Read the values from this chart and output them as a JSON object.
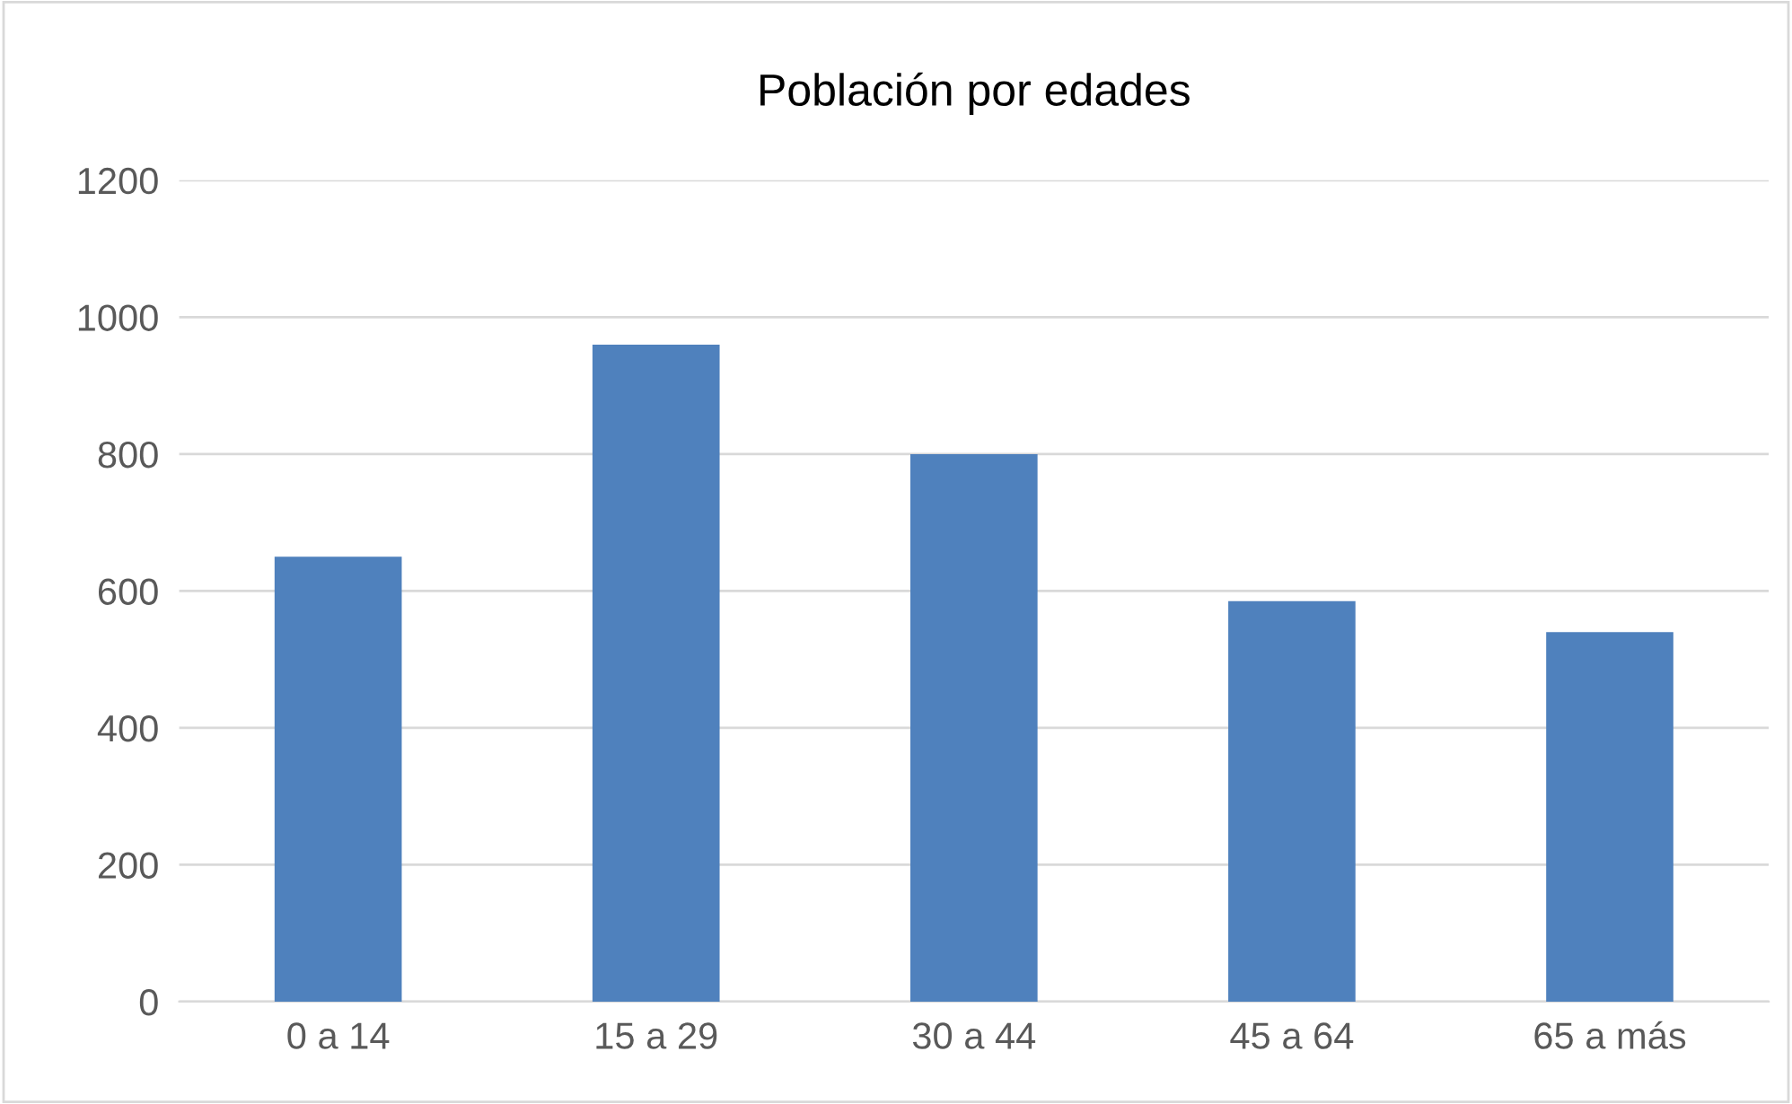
{
  "chart_data": {
    "type": "bar",
    "title": "Población por edades",
    "categories": [
      "0 a 14",
      "15 a 29",
      "30 a 44",
      "45 a 64",
      "65 a más"
    ],
    "values": [
      650,
      960,
      800,
      585,
      540
    ],
    "color": "#4f81bd",
    "ylim": [
      0,
      1200
    ],
    "yticks": [
      0,
      200,
      400,
      600,
      800,
      1000,
      1200
    ],
    "grid": "y"
  }
}
